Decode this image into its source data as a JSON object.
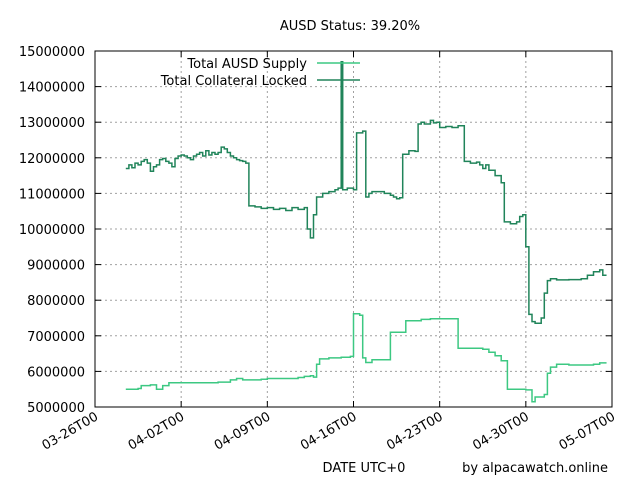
{
  "chart_data": {
    "type": "line",
    "title": "AUSD Status: 39.20%",
    "xlabel": "DATE UTC+0",
    "ylabel": "",
    "credit": "by alpacawatch.online",
    "legend_position": "top-left",
    "grid": true,
    "xlim": [
      "2021-03-26",
      "2021-05-07"
    ],
    "ylim": [
      5000000,
      15000000
    ],
    "x_ticks": [
      {
        "date": "2021-03-26",
        "label": "03-26T00"
      },
      {
        "date": "2021-04-02",
        "label": "04-02T00"
      },
      {
        "date": "2021-04-09",
        "label": "04-09T00"
      },
      {
        "date": "2021-04-16",
        "label": "04-16T00"
      },
      {
        "date": "2021-04-23",
        "label": "04-23T00"
      },
      {
        "date": "2021-04-30",
        "label": "04-30T00"
      },
      {
        "date": "2021-05-07",
        "label": "05-07T00"
      }
    ],
    "y_ticks": [
      {
        "value": 5000000,
        "label": "5000000"
      },
      {
        "value": 6000000,
        "label": "6000000"
      },
      {
        "value": 7000000,
        "label": "7000000"
      },
      {
        "value": 8000000,
        "label": "8000000"
      },
      {
        "value": 9000000,
        "label": "9000000"
      },
      {
        "value": 10000000,
        "label": "10000000"
      },
      {
        "value": 11000000,
        "label": "11000000"
      },
      {
        "value": 12000000,
        "label": "12000000"
      },
      {
        "value": 13000000,
        "label": "13000000"
      },
      {
        "value": 14000000,
        "label": "14000000"
      },
      {
        "value": 15000000,
        "label": "15000000"
      }
    ],
    "series": [
      {
        "name": "Total AUSD Supply",
        "color": "#3cc882",
        "points": [
          [
            "2021-03-28T12:00",
            5500000
          ],
          [
            "2021-03-29T12:00",
            5520000
          ],
          [
            "2021-03-29T18:00",
            5600000
          ],
          [
            "2021-03-30T12:00",
            5620000
          ],
          [
            "2021-03-31T00:00",
            5500000
          ],
          [
            "2021-03-31T12:00",
            5600000
          ],
          [
            "2021-04-01T00:00",
            5680000
          ],
          [
            "2021-04-05T00:00",
            5700000
          ],
          [
            "2021-04-06T00:00",
            5760000
          ],
          [
            "2021-04-06T12:00",
            5800000
          ],
          [
            "2021-04-07T00:00",
            5760000
          ],
          [
            "2021-04-08T12:00",
            5780000
          ],
          [
            "2021-04-09T00:00",
            5800000
          ],
          [
            "2021-04-11T12:00",
            5830000
          ],
          [
            "2021-04-12T00:00",
            5860000
          ],
          [
            "2021-04-12T12:00",
            5880000
          ],
          [
            "2021-04-12T18:00",
            5840000
          ],
          [
            "2021-04-13T00:00",
            6200000
          ],
          [
            "2021-04-13T06:00",
            6350000
          ],
          [
            "2021-04-14T00:00",
            6380000
          ],
          [
            "2021-04-15T00:00",
            6400000
          ],
          [
            "2021-04-15T18:00",
            6420000
          ],
          [
            "2021-04-16T00:00",
            7620000
          ],
          [
            "2021-04-16T12:00",
            7580000
          ],
          [
            "2021-04-16T18:00",
            6380000
          ],
          [
            "2021-04-17T00:00",
            6250000
          ],
          [
            "2021-04-17T12:00",
            6330000
          ],
          [
            "2021-04-19T00:00",
            7100000
          ],
          [
            "2021-04-20T06:00",
            7420000
          ],
          [
            "2021-04-21T12:00",
            7460000
          ],
          [
            "2021-04-22T06:00",
            7480000
          ],
          [
            "2021-04-24T00:00",
            7480000
          ],
          [
            "2021-04-24T12:00",
            6650000
          ],
          [
            "2021-04-26T12:00",
            6620000
          ],
          [
            "2021-04-27T00:00",
            6540000
          ],
          [
            "2021-04-27T12:00",
            6440000
          ],
          [
            "2021-04-28T00:00",
            6300000
          ],
          [
            "2021-04-28T12:00",
            5500000
          ],
          [
            "2021-04-30T00:00",
            5480000
          ],
          [
            "2021-04-30T12:00",
            5150000
          ],
          [
            "2021-04-30T18:00",
            5280000
          ],
          [
            "2021-05-01T12:00",
            5350000
          ],
          [
            "2021-05-01T18:00",
            5950000
          ],
          [
            "2021-05-02T00:00",
            6120000
          ],
          [
            "2021-05-02T12:00",
            6200000
          ],
          [
            "2021-05-03T12:00",
            6180000
          ],
          [
            "2021-05-05T12:00",
            6200000
          ],
          [
            "2021-05-06T00:00",
            6240000
          ],
          [
            "2021-05-06T12:00",
            6260000
          ]
        ]
      },
      {
        "name": "Total Collateral Locked",
        "color": "#20845a",
        "points": [
          [
            "2021-03-28T12:00",
            11700000
          ],
          [
            "2021-03-28T18:00",
            11800000
          ],
          [
            "2021-03-29T00:00",
            11720000
          ],
          [
            "2021-03-29T06:00",
            11850000
          ],
          [
            "2021-03-29T12:00",
            11800000
          ],
          [
            "2021-03-29T18:00",
            11900000
          ],
          [
            "2021-03-30T00:00",
            11950000
          ],
          [
            "2021-03-30T06:00",
            11850000
          ],
          [
            "2021-03-30T12:00",
            11620000
          ],
          [
            "2021-03-30T18:00",
            11750000
          ],
          [
            "2021-03-31T00:00",
            11800000
          ],
          [
            "2021-03-31T06:00",
            11950000
          ],
          [
            "2021-03-31T12:00",
            11980000
          ],
          [
            "2021-03-31T18:00",
            11900000
          ],
          [
            "2021-04-01T00:00",
            11850000
          ],
          [
            "2021-04-01T06:00",
            11750000
          ],
          [
            "2021-04-01T12:00",
            11980000
          ],
          [
            "2021-04-01T18:00",
            12050000
          ],
          [
            "2021-04-02T00:00",
            12080000
          ],
          [
            "2021-04-02T06:00",
            12050000
          ],
          [
            "2021-04-02T12:00",
            12000000
          ],
          [
            "2021-04-02T18:00",
            11950000
          ],
          [
            "2021-04-03T00:00",
            12050000
          ],
          [
            "2021-04-03T06:00",
            12100000
          ],
          [
            "2021-04-03T12:00",
            12150000
          ],
          [
            "2021-04-03T18:00",
            12050000
          ],
          [
            "2021-04-04T00:00",
            12200000
          ],
          [
            "2021-04-04T06:00",
            12080000
          ],
          [
            "2021-04-04T12:00",
            12150000
          ],
          [
            "2021-04-04T18:00",
            12100000
          ],
          [
            "2021-04-05T00:00",
            12150000
          ],
          [
            "2021-04-05T06:00",
            12300000
          ],
          [
            "2021-04-05T12:00",
            12250000
          ],
          [
            "2021-04-05T18:00",
            12150000
          ],
          [
            "2021-04-06T00:00",
            12050000
          ],
          [
            "2021-04-06T06:00",
            12000000
          ],
          [
            "2021-04-06T12:00",
            11950000
          ],
          [
            "2021-04-06T18:00",
            11920000
          ],
          [
            "2021-04-07T00:00",
            11900000
          ],
          [
            "2021-04-07T06:00",
            11850000
          ],
          [
            "2021-04-07T12:00",
            10650000
          ],
          [
            "2021-04-08T00:00",
            10620000
          ],
          [
            "2021-04-08T12:00",
            10580000
          ],
          [
            "2021-04-09T00:00",
            10600000
          ],
          [
            "2021-04-09T12:00",
            10550000
          ],
          [
            "2021-04-10T00:00",
            10580000
          ],
          [
            "2021-04-10T12:00",
            10520000
          ],
          [
            "2021-04-11T00:00",
            10600000
          ],
          [
            "2021-04-11T12:00",
            10550000
          ],
          [
            "2021-04-12T00:00",
            10600000
          ],
          [
            "2021-04-12T06:00",
            10000000
          ],
          [
            "2021-04-12T12:00",
            9750000
          ],
          [
            "2021-04-12T18:00",
            10400000
          ],
          [
            "2021-04-13T00:00",
            10900000
          ],
          [
            "2021-04-13T12:00",
            11000000
          ],
          [
            "2021-04-14T00:00",
            11050000
          ],
          [
            "2021-04-14T12:00",
            11100000
          ],
          [
            "2021-04-14T18:00",
            11150000
          ],
          [
            "2021-04-15T00:00",
            14700000
          ],
          [
            "2021-04-15T03:00",
            11100000
          ],
          [
            "2021-04-15T12:00",
            11150000
          ],
          [
            "2021-04-16T00:00",
            11100000
          ],
          [
            "2021-04-16T06:00",
            12700000
          ],
          [
            "2021-04-16T18:00",
            12750000
          ],
          [
            "2021-04-17T00:00",
            10900000
          ],
          [
            "2021-04-17T06:00",
            11000000
          ],
          [
            "2021-04-17T12:00",
            11050000
          ],
          [
            "2021-04-18T00:00",
            11050000
          ],
          [
            "2021-04-18T12:00",
            11000000
          ],
          [
            "2021-04-19T00:00",
            10950000
          ],
          [
            "2021-04-19T06:00",
            10900000
          ],
          [
            "2021-04-19T12:00",
            10850000
          ],
          [
            "2021-04-19T18:00",
            10880000
          ],
          [
            "2021-04-20T00:00",
            12100000
          ],
          [
            "2021-04-20T12:00",
            12200000
          ],
          [
            "2021-04-21T00:00",
            12180000
          ],
          [
            "2021-04-21T06:00",
            12950000
          ],
          [
            "2021-04-21T12:00",
            13000000
          ],
          [
            "2021-04-21T18:00",
            12950000
          ],
          [
            "2021-04-22T06:00",
            13050000
          ],
          [
            "2021-04-22T12:00",
            12980000
          ],
          [
            "2021-04-22T18:00",
            13000000
          ],
          [
            "2021-04-23T00:00",
            12850000
          ],
          [
            "2021-04-23T12:00",
            12880000
          ],
          [
            "2021-04-24T00:00",
            12850000
          ],
          [
            "2021-04-24T12:00",
            12900000
          ],
          [
            "2021-04-25T00:00",
            11900000
          ],
          [
            "2021-04-25T12:00",
            11850000
          ],
          [
            "2021-04-26T00:00",
            11880000
          ],
          [
            "2021-04-26T06:00",
            11800000
          ],
          [
            "2021-04-26T12:00",
            11700000
          ],
          [
            "2021-04-26T18:00",
            11800000
          ],
          [
            "2021-04-27T00:00",
            11650000
          ],
          [
            "2021-04-27T12:00",
            11500000
          ],
          [
            "2021-04-28T00:00",
            11300000
          ],
          [
            "2021-04-28T06:00",
            10200000
          ],
          [
            "2021-04-28T18:00",
            10150000
          ],
          [
            "2021-04-29T06:00",
            10200000
          ],
          [
            "2021-04-29T12:00",
            10350000
          ],
          [
            "2021-04-29T18:00",
            10400000
          ],
          [
            "2021-04-30T00:00",
            9500000
          ],
          [
            "2021-04-30T06:00",
            7600000
          ],
          [
            "2021-04-30T12:00",
            7400000
          ],
          [
            "2021-04-30T18:00",
            7350000
          ],
          [
            "2021-05-01T06:00",
            7500000
          ],
          [
            "2021-05-01T12:00",
            8200000
          ],
          [
            "2021-05-01T18:00",
            8550000
          ],
          [
            "2021-05-02T00:00",
            8600000
          ],
          [
            "2021-05-02T12:00",
            8570000
          ],
          [
            "2021-05-03T12:00",
            8580000
          ],
          [
            "2021-05-04T12:00",
            8600000
          ],
          [
            "2021-05-05T00:00",
            8700000
          ],
          [
            "2021-05-05T12:00",
            8800000
          ],
          [
            "2021-05-06T00:00",
            8850000
          ],
          [
            "2021-05-06T06:00",
            8700000
          ],
          [
            "2021-05-06T12:00",
            8680000
          ]
        ]
      }
    ]
  }
}
